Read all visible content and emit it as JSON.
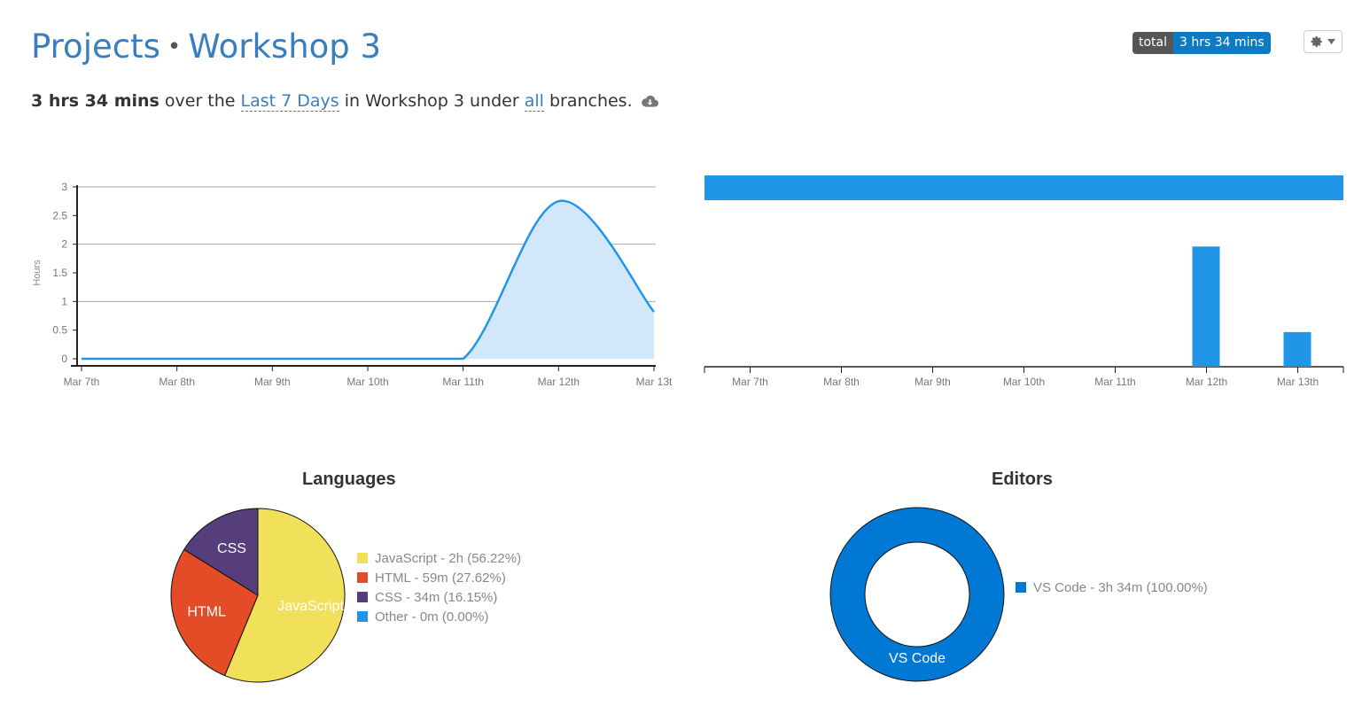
{
  "header": {
    "breadcrumb_root": "Projects",
    "breadcrumb_separator": "•",
    "project_name": "Workshop 3",
    "total_label": "total",
    "total_value": "3 hrs 34 mins"
  },
  "summary": {
    "duration": "3 hrs 34 mins",
    "text1": " over the ",
    "range_link": "Last 7 Days",
    "text2": " in Workshop 3 under ",
    "branch_link": "all",
    "text3": " branches."
  },
  "icons": {
    "settings": "gear-icon",
    "settings_caret": "caret-down-icon",
    "download": "cloud-download-icon"
  },
  "colors": {
    "link": "#3a7ebf",
    "accent": "#2196e8",
    "area_fill": "#d2e8fa",
    "javascript": "#f0e05a",
    "html": "#e34c26",
    "css": "#563d7c",
    "other": "#2196e8",
    "vscode": "#0078d4"
  },
  "chart_data": [
    {
      "type": "area",
      "title": "",
      "ylabel": "Hours",
      "xlabel": "",
      "x": [
        "Mar 7th",
        "Mar 8th",
        "Mar 9th",
        "Mar 10th",
        "Mar 11th",
        "Mar 12th",
        "Mar 13t"
      ],
      "values": [
        0,
        0,
        0,
        0,
        0,
        2.75,
        0.82
      ],
      "ylim": [
        0,
        3
      ],
      "yticks": [
        "0",
        "0.5",
        "1",
        "1.5",
        "2",
        "2.5",
        "3"
      ],
      "grid": true
    },
    {
      "type": "bar",
      "title": "",
      "categories": [
        "Mar 7th",
        "Mar 8th",
        "Mar 9th",
        "Mar 10th",
        "Mar 11th",
        "Mar 12th",
        "Mar 13th"
      ],
      "values": [
        0,
        0,
        0,
        0,
        0,
        2.6,
        0.75
      ],
      "ylim": [
        0,
        3.2
      ],
      "total_bar_fraction": 1.0
    },
    {
      "type": "pie",
      "title": "Languages",
      "slices": [
        {
          "label": "JavaScript",
          "legend": "JavaScript - 2h (56.22%)",
          "value": 56.22
        },
        {
          "label": "HTML",
          "legend": "HTML - 59m (27.62%)",
          "value": 27.62
        },
        {
          "label": "CSS",
          "legend": "CSS - 34m (16.15%)",
          "value": 16.15
        },
        {
          "label": "Other",
          "legend": "Other - 0m (0.00%)",
          "value": 0
        }
      ]
    },
    {
      "type": "pie",
      "title": "Editors",
      "slices": [
        {
          "label": "VS Code",
          "legend": "VS Code - 3h 34m (100.00%)",
          "value": 100
        }
      ]
    }
  ]
}
